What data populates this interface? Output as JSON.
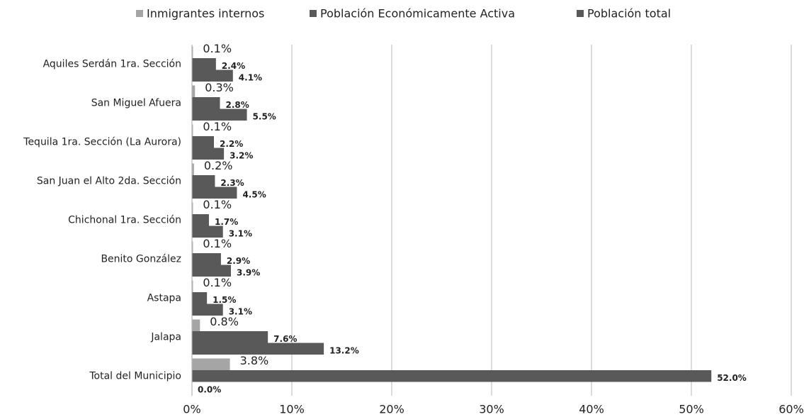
{
  "chart_data": {
    "type": "bar",
    "orientation": "horizontal",
    "categories": [
      "Aquiles Serdán 1ra. Sección",
      "San Miguel Afuera",
      "Tequila 1ra. Sección (La Aurora)",
      "San Juan el Alto 2da. Sección",
      "Chichonal 1ra. Sección",
      "Benito González",
      "Astapa",
      "Jalapa",
      "Total del Municipio"
    ],
    "series": [
      {
        "name": "Inmigrantes internos",
        "color": "#a5a5a5",
        "values": [
          0.1,
          0.3,
          0.1,
          0.2,
          0.1,
          0.1,
          0.1,
          0.8,
          3.8
        ],
        "value_labels": [
          "0.1%",
          "0.3%",
          "0.1%",
          "0.2%",
          "0.1%",
          "0.1%",
          "0.1%",
          "0.8%",
          "3.8%"
        ]
      },
      {
        "name": "Población Económicamente Activa",
        "color": "#595959",
        "values": [
          2.4,
          2.8,
          2.2,
          2.3,
          1.7,
          2.9,
          1.5,
          7.6,
          52.0
        ],
        "value_labels": [
          "2.4%",
          "2.8%",
          "2.2%",
          "2.3%",
          "1.7%",
          "2.9%",
          "1.5%",
          "7.6%",
          "52.0%"
        ]
      },
      {
        "name": "Población total",
        "color": "#595959",
        "values": [
          4.1,
          5.5,
          3.2,
          4.5,
          3.1,
          3.9,
          3.1,
          13.2,
          0.0
        ],
        "value_labels": [
          "4.1%",
          "5.5%",
          "3.2%",
          "4.5%",
          "3.1%",
          "3.9%",
          "3.1%",
          "13.2%",
          "0.0%"
        ]
      }
    ],
    "xlim": [
      0,
      60
    ],
    "xticks": [
      {
        "value": 0,
        "label": "0%"
      },
      {
        "value": 10,
        "label": "10%"
      },
      {
        "value": 20,
        "label": "20%"
      },
      {
        "value": 30,
        "label": "30%"
      },
      {
        "value": 40,
        "label": "40%"
      },
      {
        "value": 50,
        "label": "50%"
      },
      {
        "value": 60,
        "label": "60%"
      }
    ],
    "grid": true,
    "legend": "top"
  }
}
